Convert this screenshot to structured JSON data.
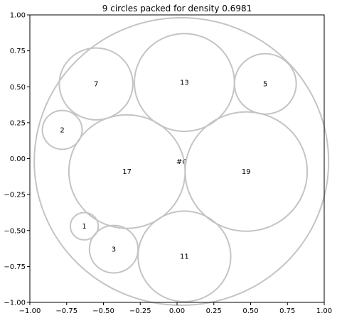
{
  "chart_data": {
    "type": "scatter",
    "title": "9 circles packed for density 0.6981",
    "xlabel": "",
    "ylabel": "",
    "xlim": [
      -1.0,
      1.0
    ],
    "ylim": [
      -1.0,
      1.0
    ],
    "grid": false,
    "x_ticks": [
      -1.0,
      -0.75,
      -0.5,
      -0.25,
      0.0,
      0.25,
      0.5,
      0.75,
      1.0
    ],
    "x_tick_labels": [
      "−1.00",
      "−0.75",
      "−0.50",
      "−0.25",
      "0.00",
      "0.25",
      "0.50",
      "0.75",
      "1.00"
    ],
    "y_ticks": [
      -1.0,
      -0.75,
      -0.5,
      -0.25,
      0.0,
      0.25,
      0.5,
      0.75,
      1.0
    ],
    "y_tick_labels": [
      "−1.00",
      "−0.75",
      "−0.50",
      "−0.25",
      "0.00",
      "0.25",
      "0.50",
      "0.75",
      "1.00"
    ],
    "container": {
      "label": "#0",
      "cx": 0.03,
      "cy": -0.02,
      "r": 1.0
    },
    "circles": [
      {
        "label": "7",
        "cx": -0.55,
        "cy": 0.52,
        "r": 0.25
      },
      {
        "label": "13",
        "cx": 0.05,
        "cy": 0.53,
        "r": 0.34
      },
      {
        "label": "5",
        "cx": 0.6,
        "cy": 0.52,
        "r": 0.21
      },
      {
        "label": "2",
        "cx": -0.78,
        "cy": 0.2,
        "r": 0.135
      },
      {
        "label": "17",
        "cx": -0.34,
        "cy": -0.09,
        "r": 0.395
      },
      {
        "label": "19",
        "cx": 0.47,
        "cy": -0.09,
        "r": 0.415
      },
      {
        "label": "1",
        "cx": -0.63,
        "cy": -0.47,
        "r": 0.095
      },
      {
        "label": "3",
        "cx": -0.43,
        "cy": -0.63,
        "r": 0.165
      },
      {
        "label": "11",
        "cx": 0.05,
        "cy": -0.68,
        "r": 0.315
      }
    ],
    "colors": {
      "circle_stroke": "#c4c4c4",
      "axes": "#000000",
      "background": "#ffffff"
    }
  }
}
